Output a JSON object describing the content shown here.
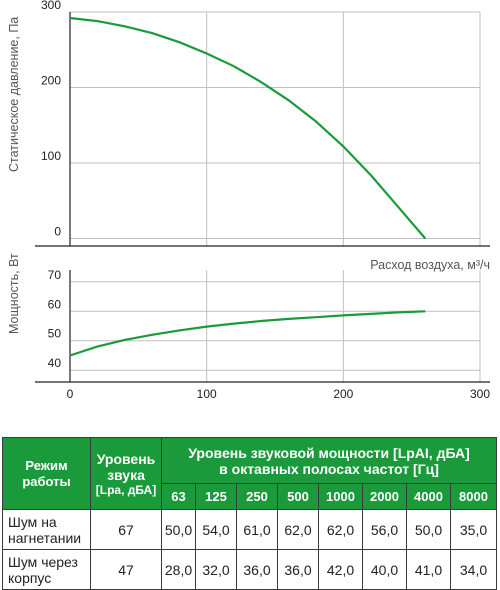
{
  "chart_data": [
    {
      "type": "line",
      "title": "",
      "xlabel": "Расход воздуха, м³/ч",
      "ylabel": "Статическое давление, Па",
      "xlim": [
        0,
        300
      ],
      "ylim": [
        -10,
        300
      ],
      "x_ticks": [],
      "y_ticks": [
        "0",
        "100",
        "200",
        "300"
      ],
      "grid": true,
      "series": [
        {
          "color": "#1a9a3a",
          "x": [
            0,
            20,
            40,
            60,
            80,
            100,
            120,
            140,
            160,
            180,
            200,
            220,
            240,
            260
          ],
          "y": [
            292,
            288,
            281,
            272,
            260,
            245,
            228,
            207,
            183,
            155,
            122,
            84,
            42,
            0
          ]
        }
      ]
    },
    {
      "type": "line",
      "title": "",
      "xlabel": "",
      "ylabel": "Мощность, Вт",
      "xlim": [
        0,
        300
      ],
      "ylim": [
        36,
        74
      ],
      "x_ticks": [
        "0",
        "100",
        "200",
        "300"
      ],
      "y_ticks": [
        "40",
        "50",
        "60",
        "70"
      ],
      "grid": true,
      "series": [
        {
          "color": "#1a9a3a",
          "x": [
            0,
            20,
            40,
            60,
            80,
            100,
            120,
            140,
            160,
            180,
            200,
            220,
            240,
            260
          ],
          "y": [
            45,
            48,
            50.3,
            52,
            53.5,
            54.8,
            55.8,
            56.7,
            57.4,
            58,
            58.6,
            59.1,
            59.6,
            60
          ]
        }
      ]
    }
  ],
  "table": {
    "header": {
      "mode": "Режим работы",
      "level": "Уровень звука",
      "level_unit": "[Lpa, дБА]",
      "power_title": "Уровень звуковой мощности [LpAI, дБА]",
      "power_sub": "в октавных полосах частот [Гц]",
      "freqs": [
        "63",
        "125",
        "250",
        "500",
        "1000",
        "2000",
        "4000",
        "8000"
      ]
    },
    "rows": [
      {
        "label": "Шум на нагнетании",
        "level": "67",
        "values": [
          "50,0",
          "54,0",
          "61,0",
          "62,0",
          "62,0",
          "56,0",
          "50,0",
          "35,0"
        ]
      },
      {
        "label": "Шум через корпус",
        "level": "47",
        "values": [
          "28,0",
          "32,0",
          "36,0",
          "36,0",
          "42,0",
          "40,0",
          "41,0",
          "34,0"
        ]
      }
    ]
  }
}
